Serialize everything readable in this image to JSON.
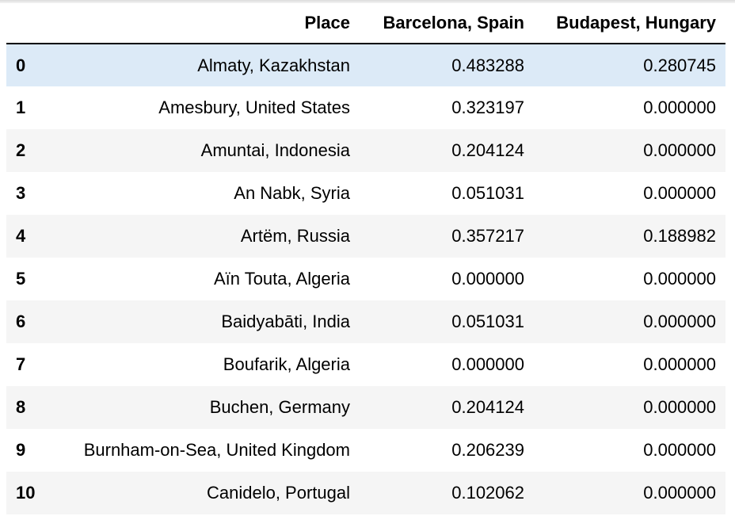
{
  "table": {
    "columns": [
      "",
      "Place",
      "Barcelona, Spain",
      "Budapest, Hungary"
    ],
    "rows": [
      {
        "index": "0",
        "place": "Almaty, Kazakhstan",
        "barcelona": "0.483288",
        "budapest": "0.280745"
      },
      {
        "index": "1",
        "place": "Amesbury, United States",
        "barcelona": "0.323197",
        "budapest": "0.000000"
      },
      {
        "index": "2",
        "place": "Amuntai, Indonesia",
        "barcelona": "0.204124",
        "budapest": "0.000000"
      },
      {
        "index": "3",
        "place": "An Nabk, Syria",
        "barcelona": "0.051031",
        "budapest": "0.000000"
      },
      {
        "index": "4",
        "place": "Artëm, Russia",
        "barcelona": "0.357217",
        "budapest": "0.188982"
      },
      {
        "index": "5",
        "place": "Aïn Touta, Algeria",
        "barcelona": "0.000000",
        "budapest": "0.000000"
      },
      {
        "index": "6",
        "place": "Baidyabāti, India",
        "barcelona": "0.051031",
        "budapest": "0.000000"
      },
      {
        "index": "7",
        "place": "Boufarik, Algeria",
        "barcelona": "0.000000",
        "budapest": "0.000000"
      },
      {
        "index": "8",
        "place": "Buchen, Germany",
        "barcelona": "0.204124",
        "budapest": "0.000000"
      },
      {
        "index": "9",
        "place": "Burnham-on-Sea, United Kingdom",
        "barcelona": "0.206239",
        "budapest": "0.000000"
      },
      {
        "index": "10",
        "place": "Canidelo, Portugal",
        "barcelona": "0.102062",
        "budapest": "0.000000"
      }
    ]
  },
  "colors": {
    "highlight_row": "#dceaf7",
    "stripe_row": "#f5f5f5",
    "header_rule": "#000000"
  }
}
